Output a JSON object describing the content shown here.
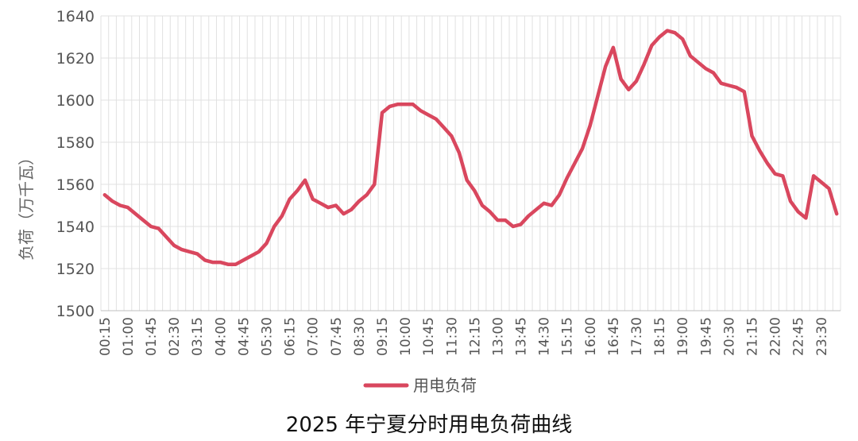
{
  "chart_data": {
    "type": "line",
    "title": "2025 年宁夏分时用电负荷曲线",
    "ylabel": "负荷（万千瓦）",
    "xlabel": "",
    "ylim": [
      1500,
      1640
    ],
    "yticks": [
      1500,
      1520,
      1540,
      1560,
      1580,
      1600,
      1620,
      1640
    ],
    "xtick_labels": [
      "00:15",
      "01:00",
      "01:45",
      "02:30",
      "03:15",
      "04:00",
      "04:45",
      "05:30",
      "06:15",
      "07:00",
      "07:45",
      "08:30",
      "09:15",
      "10:00",
      "10:45",
      "11:30",
      "12:15",
      "13:00",
      "13:45",
      "14:30",
      "15:15",
      "16:00",
      "16:45",
      "17:30",
      "18:15",
      "19:00",
      "19:45",
      "20:30",
      "21:15",
      "22:00",
      "22:45",
      "23:30"
    ],
    "grid": true,
    "legend": "bottom-center",
    "line_color": "#d9475e",
    "series": [
      {
        "name": "用电负荷",
        "values": [
          1555,
          1552,
          1550,
          1549,
          1546,
          1543,
          1540,
          1539,
          1535,
          1531,
          1529,
          1528,
          1527,
          1524,
          1523,
          1523,
          1522,
          1522,
          1524,
          1526,
          1528,
          1532,
          1540,
          1545,
          1553,
          1557,
          1562,
          1553,
          1551,
          1549,
          1550,
          1546,
          1548,
          1552,
          1555,
          1560,
          1594,
          1597,
          1598,
          1598,
          1598,
          1595,
          1593,
          1591,
          1587,
          1583,
          1575,
          1562,
          1557,
          1550,
          1547,
          1543,
          1543,
          1540,
          1541,
          1545,
          1548,
          1551,
          1550,
          1555,
          1563,
          1570,
          1577,
          1588,
          1602,
          1616,
          1625,
          1610,
          1605,
          1609,
          1617,
          1626,
          1630,
          1633,
          1632,
          1629,
          1621,
          1618,
          1615,
          1613,
          1608,
          1607,
          1606,
          1604,
          1583,
          1576,
          1570,
          1565,
          1564,
          1552,
          1547,
          1544,
          1564,
          1561,
          1558,
          1546
        ]
      }
    ]
  }
}
